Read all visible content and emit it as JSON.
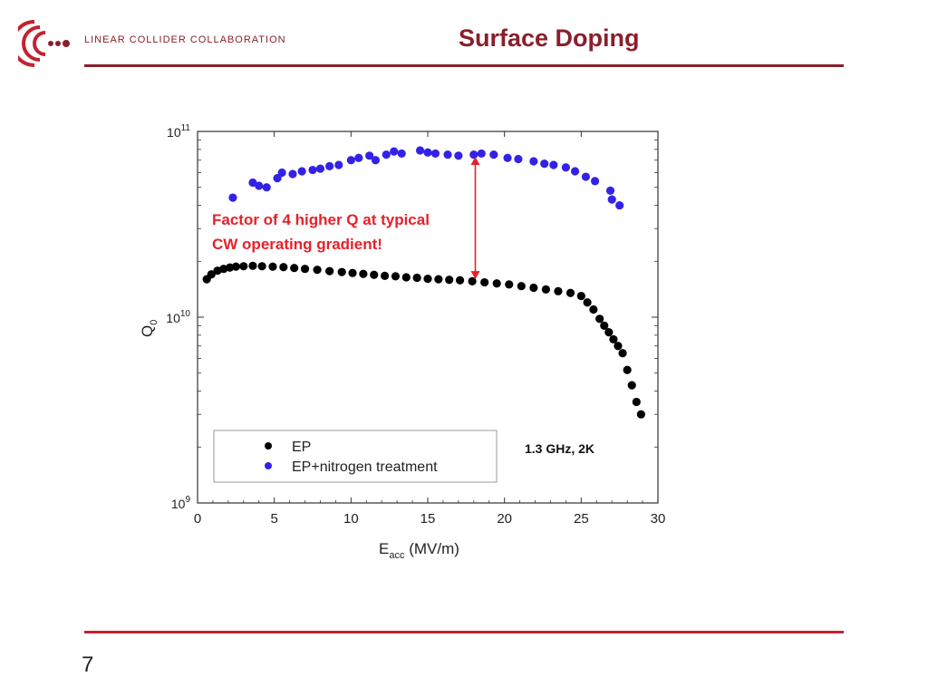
{
  "header": {
    "org_name": "LINEAR COLLIDER COLLABORATION",
    "slide_title": "Surface Doping"
  },
  "footer": {
    "page_number": "7"
  },
  "colors": {
    "brand": "#8a1f2b",
    "accent_red": "#c3222f",
    "annotation": "#e8202a",
    "ep": "#000000",
    "ep_n": "#3322e6"
  },
  "chart_data": {
    "type": "scatter",
    "xlabel_main": "E",
    "xlabel_sub": "acc",
    "xlabel_unit": " (MV/m)",
    "ylabel_main": "Q",
    "ylabel_sub": "0",
    "xlim": [
      0,
      30
    ],
    "ylim": [
      1000000000,
      100000000000
    ],
    "yscale": "log",
    "x_ticks": [
      0,
      5,
      10,
      15,
      20,
      25,
      30
    ],
    "x_tick_labels": [
      "0",
      "5",
      "10",
      "15",
      "20",
      "25",
      "30"
    ],
    "y_ticks": [
      {
        "value": 1000000000,
        "base": "10",
        "exp": "9"
      },
      {
        "value": 10000000000,
        "base": "10",
        "exp": "10"
      },
      {
        "value": 100000000000,
        "base": "10",
        "exp": "11"
      }
    ],
    "legend": {
      "position": "bottom-left",
      "entries": [
        {
          "label": "EP",
          "color": "#000000"
        },
        {
          "label": "EP+nitrogen treatment",
          "color": "#3322e6"
        }
      ]
    },
    "condition_label": "1.3 GHz, 2K",
    "annotation": {
      "line1": "Factor of 4 higher Q at typical",
      "line2": "CW operating gradient!",
      "arrow_x": 18.1,
      "arrow_from": 16000000000.0,
      "arrow_to": 73000000000.0
    },
    "series": [
      {
        "name": "EP",
        "color": "#000000",
        "x": [
          0.6,
          0.9,
          1.3,
          1.7,
          2.1,
          2.5,
          3.0,
          3.6,
          4.2,
          4.9,
          5.6,
          6.3,
          7.0,
          7.8,
          8.6,
          9.4,
          10.1,
          10.8,
          11.5,
          12.2,
          12.9,
          13.6,
          14.3,
          15.0,
          15.7,
          16.4,
          17.1,
          17.9,
          18.7,
          19.5,
          20.3,
          21.1,
          21.9,
          22.7,
          23.5,
          24.3,
          25.0,
          25.4,
          25.8,
          26.2,
          26.5,
          26.8,
          27.1,
          27.4,
          27.7,
          28.0,
          28.3,
          28.6,
          28.9
        ],
        "y": [
          16000000000.0,
          17000000000.0,
          17800000000.0,
          18200000000.0,
          18500000000.0,
          18700000000.0,
          18800000000.0,
          18900000000.0,
          18800000000.0,
          18700000000.0,
          18600000000.0,
          18400000000.0,
          18200000000.0,
          18000000000.0,
          17700000000.0,
          17500000000.0,
          17300000000.0,
          17100000000.0,
          16900000000.0,
          16700000000.0,
          16600000000.0,
          16400000000.0,
          16300000000.0,
          16100000000.0,
          16000000000.0,
          15900000000.0,
          15800000000.0,
          15600000000.0,
          15400000000.0,
          15200000000.0,
          15000000000.0,
          14700000000.0,
          14400000000.0,
          14100000000.0,
          13800000000.0,
          13500000000.0,
          13000000000.0,
          12000000000.0,
          11000000000.0,
          9800000000.0,
          9000000000.0,
          8300000000.0,
          7600000000.0,
          7000000000.0,
          6400000000.0,
          5200000000.0,
          4300000000.0,
          3500000000.0,
          3000000000.0
        ]
      },
      {
        "name": "EP+nitrogen treatment",
        "color": "#3322e6",
        "x": [
          2.3,
          3.6,
          4.0,
          4.5,
          5.2,
          5.5,
          6.2,
          6.8,
          7.5,
          8.0,
          8.6,
          9.2,
          10.0,
          10.5,
          11.2,
          11.6,
          12.3,
          12.8,
          13.3,
          14.5,
          15.0,
          15.5,
          16.3,
          17.0,
          18.0,
          18.5,
          19.3,
          20.2,
          20.9,
          21.9,
          22.6,
          23.2,
          24.0,
          24.6,
          25.3,
          25.9,
          26.9,
          27.0,
          27.5
        ],
        "y": [
          44000000000.0,
          53000000000.0,
          51000000000.0,
          50000000000.0,
          56000000000.0,
          60000000000.0,
          59000000000.0,
          61000000000.0,
          62000000000.0,
          63000000000.0,
          65000000000.0,
          66000000000.0,
          70000000000.0,
          72000000000.0,
          74000000000.0,
          70000000000.0,
          75000000000.0,
          78000000000.0,
          76000000000.0,
          79000000000.0,
          77000000000.0,
          76000000000.0,
          75000000000.0,
          74000000000.0,
          75000000000.0,
          76000000000.0,
          75000000000.0,
          72000000000.0,
          71000000000.0,
          69000000000.0,
          67000000000.0,
          66000000000.0,
          64000000000.0,
          61000000000.0,
          57000000000.0,
          54000000000.0,
          48000000000.0,
          43000000000.0,
          40000000000.0
        ]
      }
    ]
  }
}
